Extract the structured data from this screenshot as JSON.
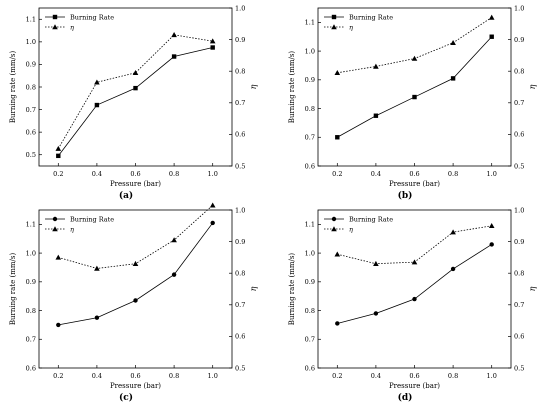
{
  "panel_labels": [
    "(a)",
    "(b)",
    "(c)",
    "(d)"
  ],
  "chart_data": [
    {
      "type": "line",
      "panel": "(a)",
      "xlabel": "Pressure (bar)",
      "ylabel_left": "Burning rate (mm/s)",
      "ylabel_right": "η",
      "x": [
        0.2,
        0.4,
        0.6,
        0.8,
        1.0
      ],
      "xlim": [
        0.1,
        1.1
      ],
      "xticks": [
        "0.2",
        "0.4",
        "0.6",
        "0.8",
        "1.0"
      ],
      "ylim_left": [
        0.45,
        1.15
      ],
      "yticks_left": [
        "0.5",
        "0.6",
        "0.7",
        "0.8",
        "0.9",
        "1.0",
        "1.1"
      ],
      "ylim_right": [
        0.5,
        1.0
      ],
      "yticks_right": [
        "0.5",
        "0.6",
        "0.7",
        "0.8",
        "0.9",
        "1.0"
      ],
      "legend": "top-left",
      "series": [
        {
          "name": "Burning Rate",
          "axis": "left",
          "marker": "square",
          "linestyle": "solid",
          "values": [
            0.495,
            0.72,
            0.795,
            0.935,
            0.975
          ]
        },
        {
          "name": "η",
          "axis": "right",
          "marker": "triangle",
          "linestyle": "dotted",
          "values": [
            0.555,
            0.765,
            0.795,
            0.915,
            0.895
          ]
        }
      ]
    },
    {
      "type": "line",
      "panel": "(b)",
      "xlabel": "Pressure (bar)",
      "ylabel_left": "Burning rate (mm/s)",
      "ylabel_right": "η",
      "x": [
        0.2,
        0.4,
        0.6,
        0.8,
        1.0
      ],
      "xlim": [
        0.1,
        1.1
      ],
      "xticks": [
        "0.2",
        "0.4",
        "0.6",
        "0.8",
        "1.0"
      ],
      "ylim_left": [
        0.6,
        1.15
      ],
      "yticks_left": [
        "0.6",
        "0.7",
        "0.8",
        "0.9",
        "1.0",
        "1.1"
      ],
      "ylim_right": [
        0.5,
        1.0
      ],
      "yticks_right": [
        "0.5",
        "0.6",
        "0.7",
        "0.8",
        "0.9",
        "1.0"
      ],
      "legend": "top-left",
      "series": [
        {
          "name": "Burning Rate",
          "axis": "left",
          "marker": "square",
          "linestyle": "solid",
          "values": [
            0.7,
            0.775,
            0.84,
            0.905,
            1.05
          ]
        },
        {
          "name": "η",
          "axis": "right",
          "marker": "triangle",
          "linestyle": "dotted",
          "values": [
            0.795,
            0.815,
            0.84,
            0.89,
            0.97
          ]
        }
      ]
    },
    {
      "type": "line",
      "panel": "(c)",
      "xlabel": "Pressure (bar)",
      "ylabel_left": "Burning rate (mm/s)",
      "ylabel_right": "η",
      "x": [
        0.2,
        0.4,
        0.6,
        0.8,
        1.0
      ],
      "xlim": [
        0.1,
        1.1
      ],
      "xticks": [
        "0.2",
        "0.4",
        "0.6",
        "0.8",
        "1.0"
      ],
      "ylim_left": [
        0.6,
        1.15
      ],
      "yticks_left": [
        "0.6",
        "0.7",
        "0.8",
        "0.9",
        "1.0",
        "1.1"
      ],
      "ylim_right": [
        0.5,
        1.0
      ],
      "yticks_right": [
        "0.5",
        "0.6",
        "0.7",
        "0.8",
        "0.9",
        "1.0"
      ],
      "legend": "top-left",
      "series": [
        {
          "name": "Burning Rate",
          "axis": "left",
          "marker": "circle",
          "linestyle": "solid",
          "values": [
            0.75,
            0.775,
            0.835,
            0.925,
            1.105
          ]
        },
        {
          "name": "η",
          "axis": "right",
          "marker": "triangle",
          "linestyle": "dotted",
          "values": [
            0.85,
            0.815,
            0.83,
            0.905,
            1.015
          ]
        }
      ]
    },
    {
      "type": "line",
      "panel": "(d)",
      "xlabel": "Pressure (bar)",
      "ylabel_left": "Burning rate (mm/s)",
      "ylabel_right": "η",
      "x": [
        0.2,
        0.4,
        0.6,
        0.8,
        1.0
      ],
      "xlim": [
        0.1,
        1.1
      ],
      "xticks": [
        "0.2",
        "0.4",
        "0.6",
        "0.8",
        "1.0"
      ],
      "ylim_left": [
        0.6,
        1.15
      ],
      "yticks_left": [
        "0.6",
        "0.7",
        "0.8",
        "0.9",
        "1.0",
        "1.1"
      ],
      "ylim_right": [
        0.5,
        1.0
      ],
      "yticks_right": [
        "0.5",
        "0.6",
        "0.7",
        "0.8",
        "0.9",
        "1.0"
      ],
      "legend": "top-left",
      "series": [
        {
          "name": "Burning Rate",
          "axis": "left",
          "marker": "circle",
          "linestyle": "solid",
          "values": [
            0.755,
            0.79,
            0.84,
            0.945,
            1.03
          ]
        },
        {
          "name": "η",
          "axis": "right",
          "marker": "triangle",
          "linestyle": "dotted",
          "values": [
            0.86,
            0.83,
            0.835,
            0.93,
            0.95
          ]
        }
      ]
    }
  ]
}
